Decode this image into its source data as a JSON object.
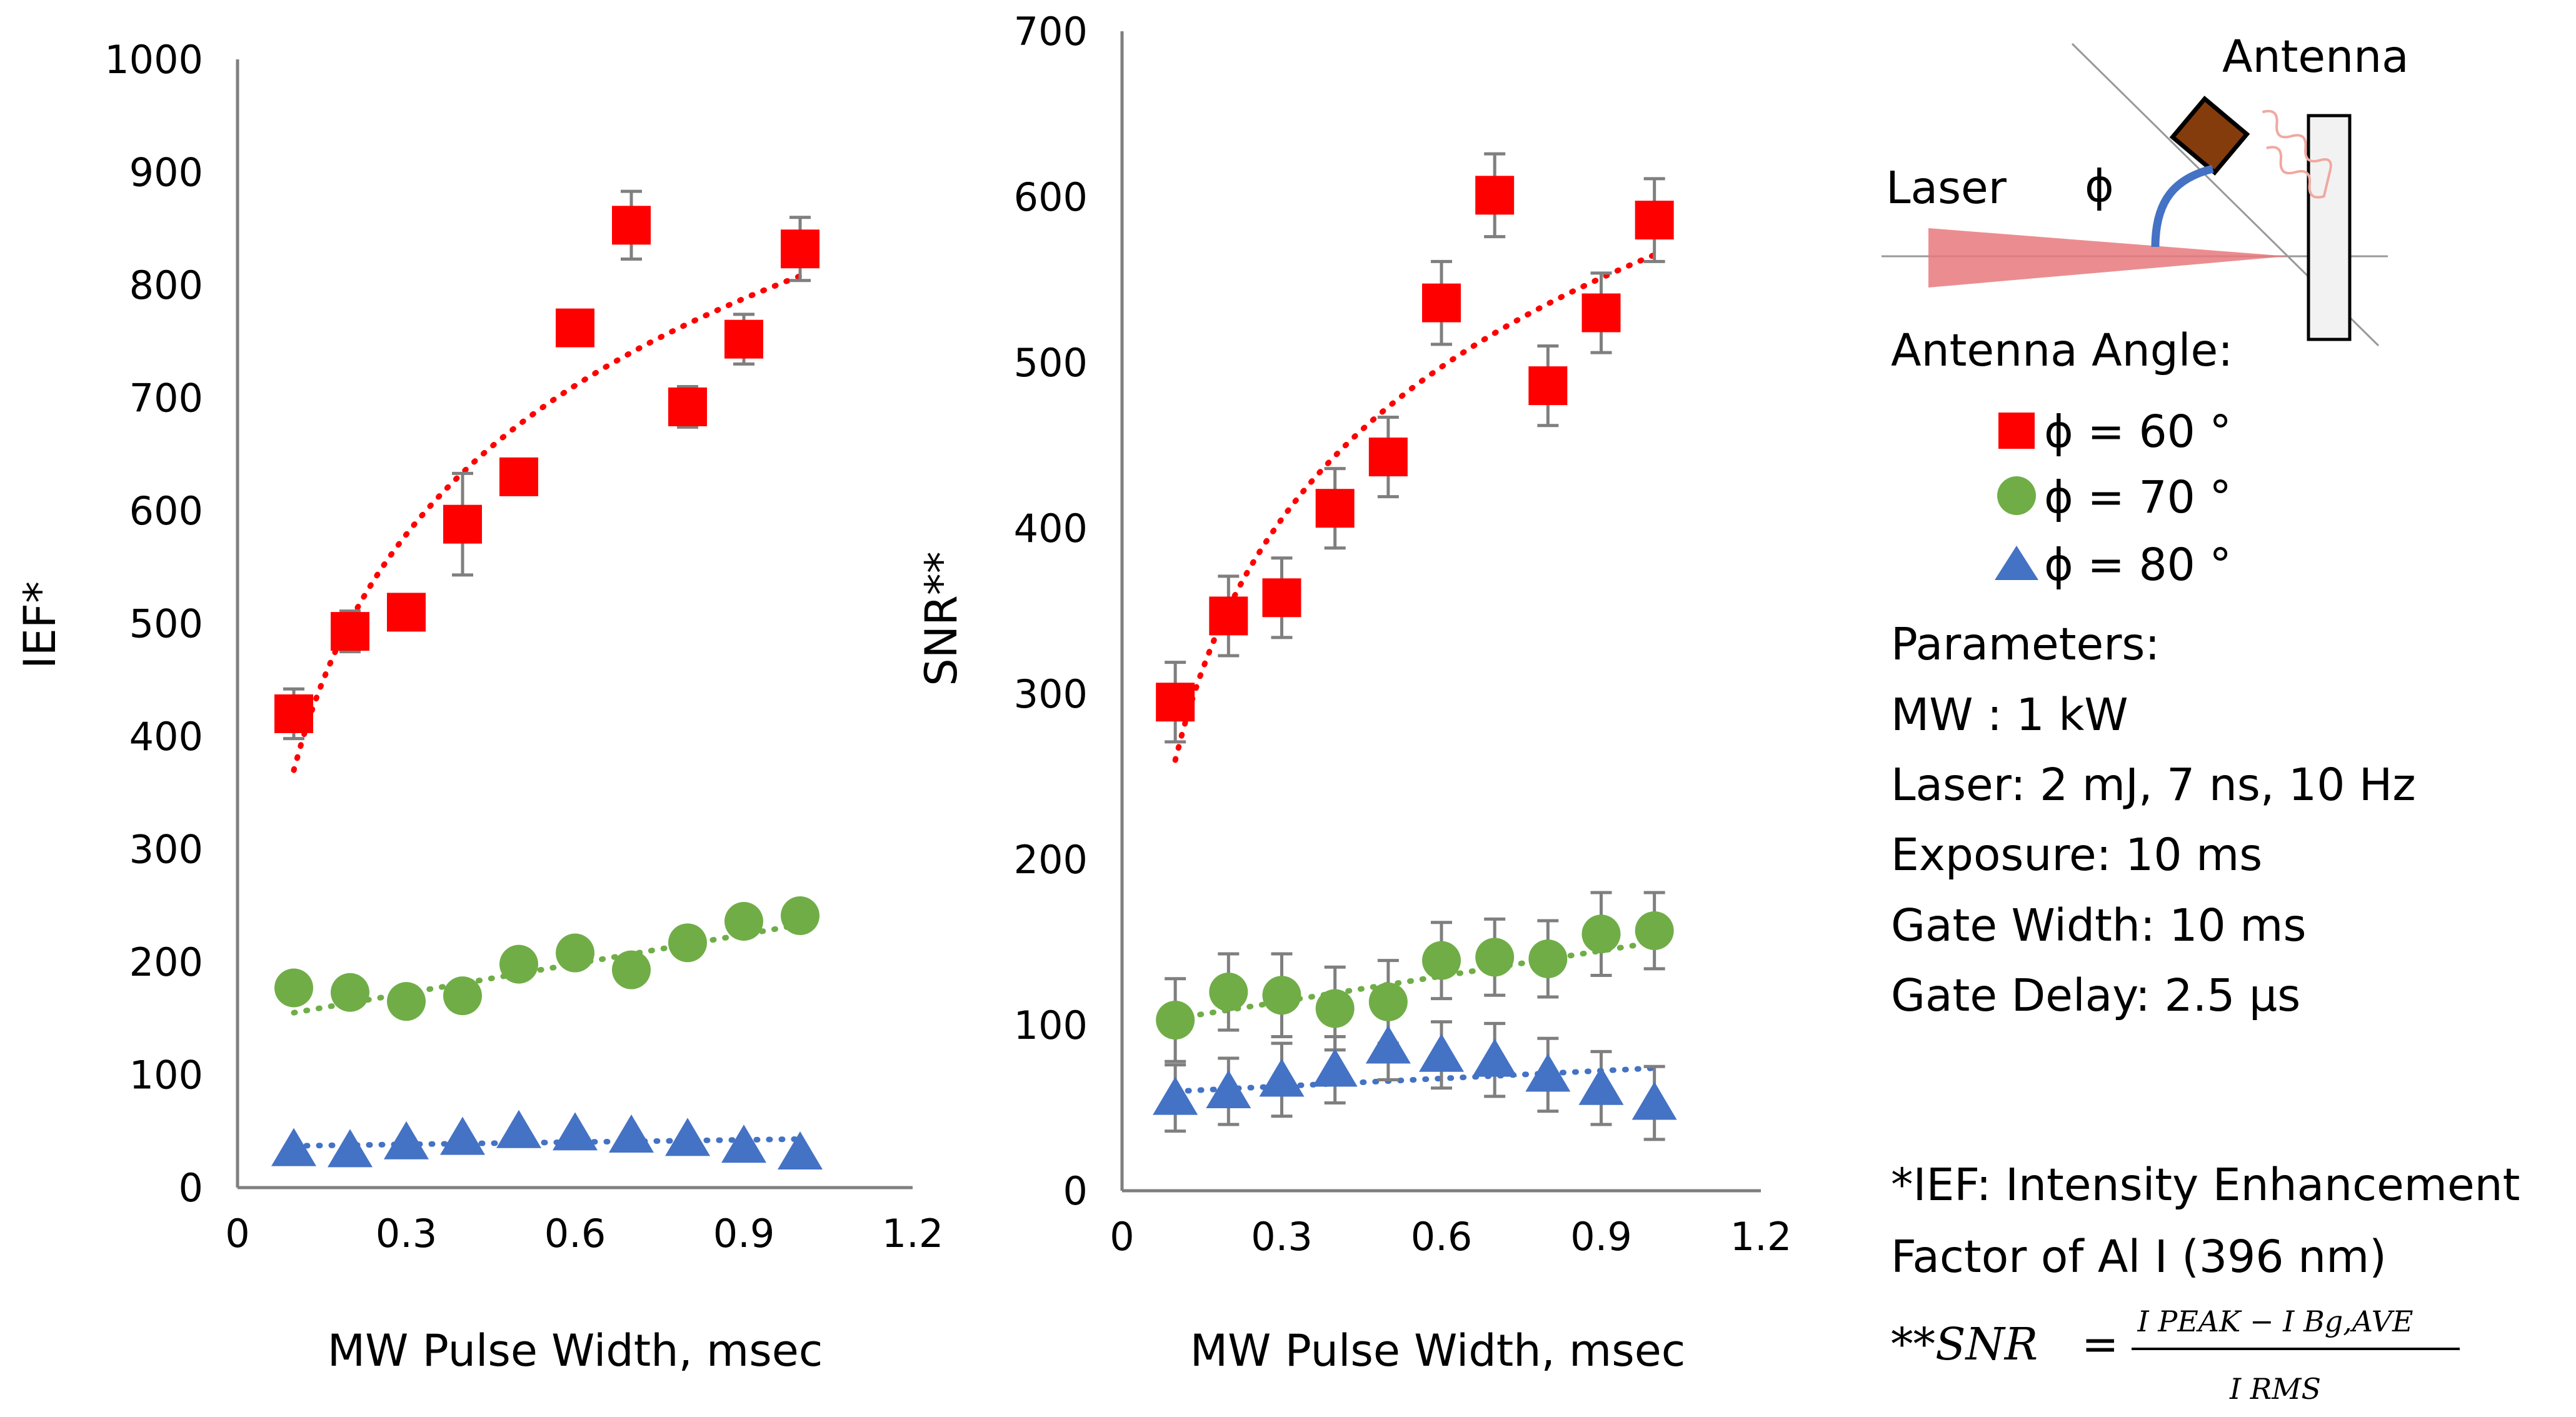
{
  "chart_data": [
    {
      "type": "scatter",
      "name": "ief-chart",
      "xlabel": "MW Pulse Width, msec",
      "ylabel": "IEF*",
      "xlim": [
        0,
        1.2
      ],
      "ylim": [
        0,
        1000
      ],
      "xticks": [
        0,
        0.3,
        0.6,
        0.9,
        1.2
      ],
      "xtick_labels": [
        "0",
        "0.3",
        "0.6",
        "0.9",
        "1.2"
      ],
      "yticks": [
        0,
        100,
        200,
        300,
        400,
        500,
        600,
        700,
        800,
        900,
        1000
      ],
      "ytick_labels": [
        "0",
        "100",
        "200",
        "300",
        "400",
        "500",
        "600",
        "700",
        "800",
        "900",
        "1000"
      ],
      "x": [
        0.1,
        0.2,
        0.3,
        0.4,
        0.5,
        0.6,
        0.7,
        0.8,
        0.9,
        1.0
      ],
      "series": [
        {
          "name": "ϕ = 60 °",
          "marker": "square",
          "color": "#ff0000",
          "values": [
            420,
            493,
            510,
            588,
            630,
            762,
            853,
            692,
            752,
            832
          ],
          "errors": [
            22,
            18,
            8,
            45,
            10,
            12,
            30,
            18,
            22,
            28
          ],
          "trend": {
            "type": "log",
            "from": 0.1,
            "to": 1.0,
            "y0": 370,
            "y1": 808
          }
        },
        {
          "name": "ϕ = 70 °",
          "marker": "circle",
          "color": "#70ad47",
          "values": [
            177,
            173,
            165,
            170,
            198,
            208,
            193,
            217,
            236,
            241
          ],
          "errors": [
            0,
            0,
            0,
            0,
            0,
            0,
            0,
            0,
            0,
            0
          ],
          "trend": {
            "type": "linear",
            "from": 0.1,
            "to": 1.0,
            "y0": 155,
            "y1": 233
          }
        },
        {
          "name": "ϕ = 80 °",
          "marker": "triangle",
          "color": "#4472c4",
          "values": [
            34,
            33,
            40,
            44,
            50,
            48,
            46,
            43,
            37,
            31
          ],
          "errors": [
            0,
            0,
            0,
            0,
            0,
            0,
            0,
            0,
            0,
            0
          ],
          "trend": {
            "type": "linear",
            "from": 0.1,
            "to": 1.0,
            "y0": 37,
            "y1": 43
          }
        }
      ]
    },
    {
      "type": "scatter",
      "name": "snr-chart",
      "xlabel": "MW Pulse Width, msec",
      "ylabel": "SNR**",
      "xlim": [
        0,
        1.2
      ],
      "ylim": [
        0,
        700
      ],
      "xticks": [
        0,
        0.3,
        0.6,
        0.9,
        1.2
      ],
      "xtick_labels": [
        "0",
        "0.3",
        "0.6",
        "0.9",
        "1.2"
      ],
      "yticks": [
        0,
        100,
        200,
        300,
        400,
        500,
        600,
        700
      ],
      "ytick_labels": [
        "0",
        "100",
        "200",
        "300",
        "400",
        "500",
        "600",
        "700"
      ],
      "x": [
        0.1,
        0.2,
        0.3,
        0.4,
        0.5,
        0.6,
        0.7,
        0.8,
        0.9,
        1.0
      ],
      "series": [
        {
          "name": "ϕ = 60 °",
          "marker": "square",
          "color": "#ff0000",
          "values": [
            295,
            347,
            358,
            412,
            443,
            536,
            601,
            486,
            530,
            586
          ],
          "errors": [
            24,
            24,
            24,
            24,
            24,
            25,
            25,
            24,
            24,
            25
          ],
          "trend": {
            "type": "log",
            "from": 0.1,
            "to": 1.0,
            "y0": 260,
            "y1": 565
          }
        },
        {
          "name": "ϕ = 70 °",
          "marker": "circle",
          "color": "#70ad47",
          "values": [
            103,
            120,
            118,
            110,
            114,
            139,
            141,
            140,
            155,
            157
          ],
          "errors": [
            25,
            23,
            25,
            25,
            25,
            23,
            23,
            23,
            25,
            23
          ],
          "trend": {
            "type": "linear",
            "from": 0.1,
            "to": 1.0,
            "y0": 104,
            "y1": 150
          }
        },
        {
          "name": "ϕ = 80 °",
          "marker": "triangle",
          "color": "#4472c4",
          "values": [
            56,
            60,
            67,
            73,
            87,
            82,
            79,
            70,
            62,
            53
          ],
          "errors": [
            20,
            20,
            22,
            20,
            20,
            20,
            22,
            22,
            22,
            22
          ],
          "trend": {
            "type": "linear",
            "from": 0.1,
            "to": 1.0,
            "y0": 60,
            "y1": 74
          }
        }
      ]
    }
  ],
  "diagram": {
    "antenna_label": "Antenna",
    "laser_label": "Laser",
    "angle_symbol": "ϕ"
  },
  "legend": {
    "title": "Antenna Angle:",
    "items": [
      {
        "label": "ϕ = 60 °",
        "marker": "square",
        "color": "#ff0000"
      },
      {
        "label": "ϕ = 70 °",
        "marker": "circle",
        "color": "#70ad47"
      },
      {
        "label": "ϕ = 80 °",
        "marker": "triangle",
        "color": "#4472c4"
      }
    ]
  },
  "parameters": {
    "title": "Parameters:",
    "lines": [
      "MW : 1 kW",
      "Laser: 2 mJ, 7 ns, 10 Hz",
      "Exposure: 10 ms",
      "Gate Width: 10 ms",
      "Gate Delay: 2.5 μs"
    ]
  },
  "footnotes": {
    "ief_line1": "*IEF: Intensity Enhancement",
    "ief_line2": "Factor of Al I (396 nm)",
    "snr_prefix": "**SNR",
    "snr_equals": "=",
    "snr_numerator": "I PEAK − I Bg,AVE",
    "snr_denominator": "I RMS"
  }
}
